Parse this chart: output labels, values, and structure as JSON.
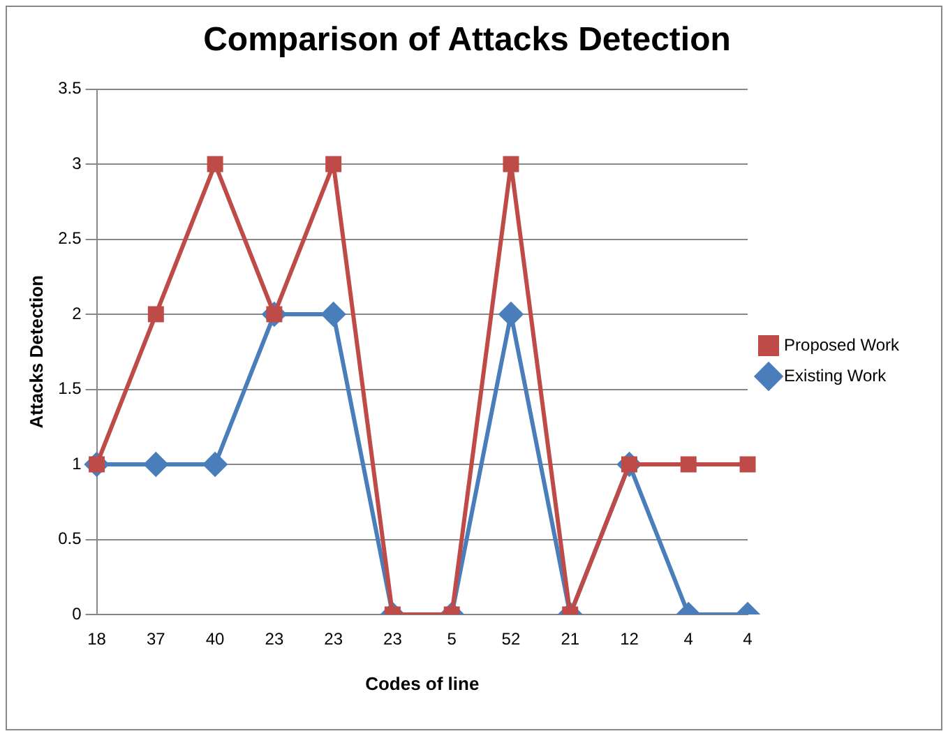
{
  "chart_data": {
    "type": "line",
    "title": "Comparison of Attacks Detection",
    "xlabel": "Codes of line",
    "ylabel": "Attacks Detection",
    "categories": [
      "18",
      "37",
      "40",
      "23",
      "23",
      "23",
      "5",
      "52",
      "21",
      "12",
      "4",
      "4"
    ],
    "series": [
      {
        "name": "Existing Work",
        "color": "#4a7ebb",
        "marker": "diamond",
        "values": [
          1,
          1,
          1,
          2,
          2,
          0,
          0,
          2,
          0,
          1,
          0,
          0
        ]
      },
      {
        "name": "Proposed Work",
        "color": "#be4b48",
        "marker": "square",
        "values": [
          1,
          2,
          3,
          2,
          3,
          0,
          0,
          3,
          0,
          1,
          1,
          1
        ]
      }
    ],
    "ylim": [
      0,
      3.5
    ],
    "yticks": [
      0,
      0.5,
      1,
      1.5,
      2,
      2.5,
      3,
      3.5
    ],
    "grid": "y",
    "legend": "right",
    "line_style": "solid"
  }
}
